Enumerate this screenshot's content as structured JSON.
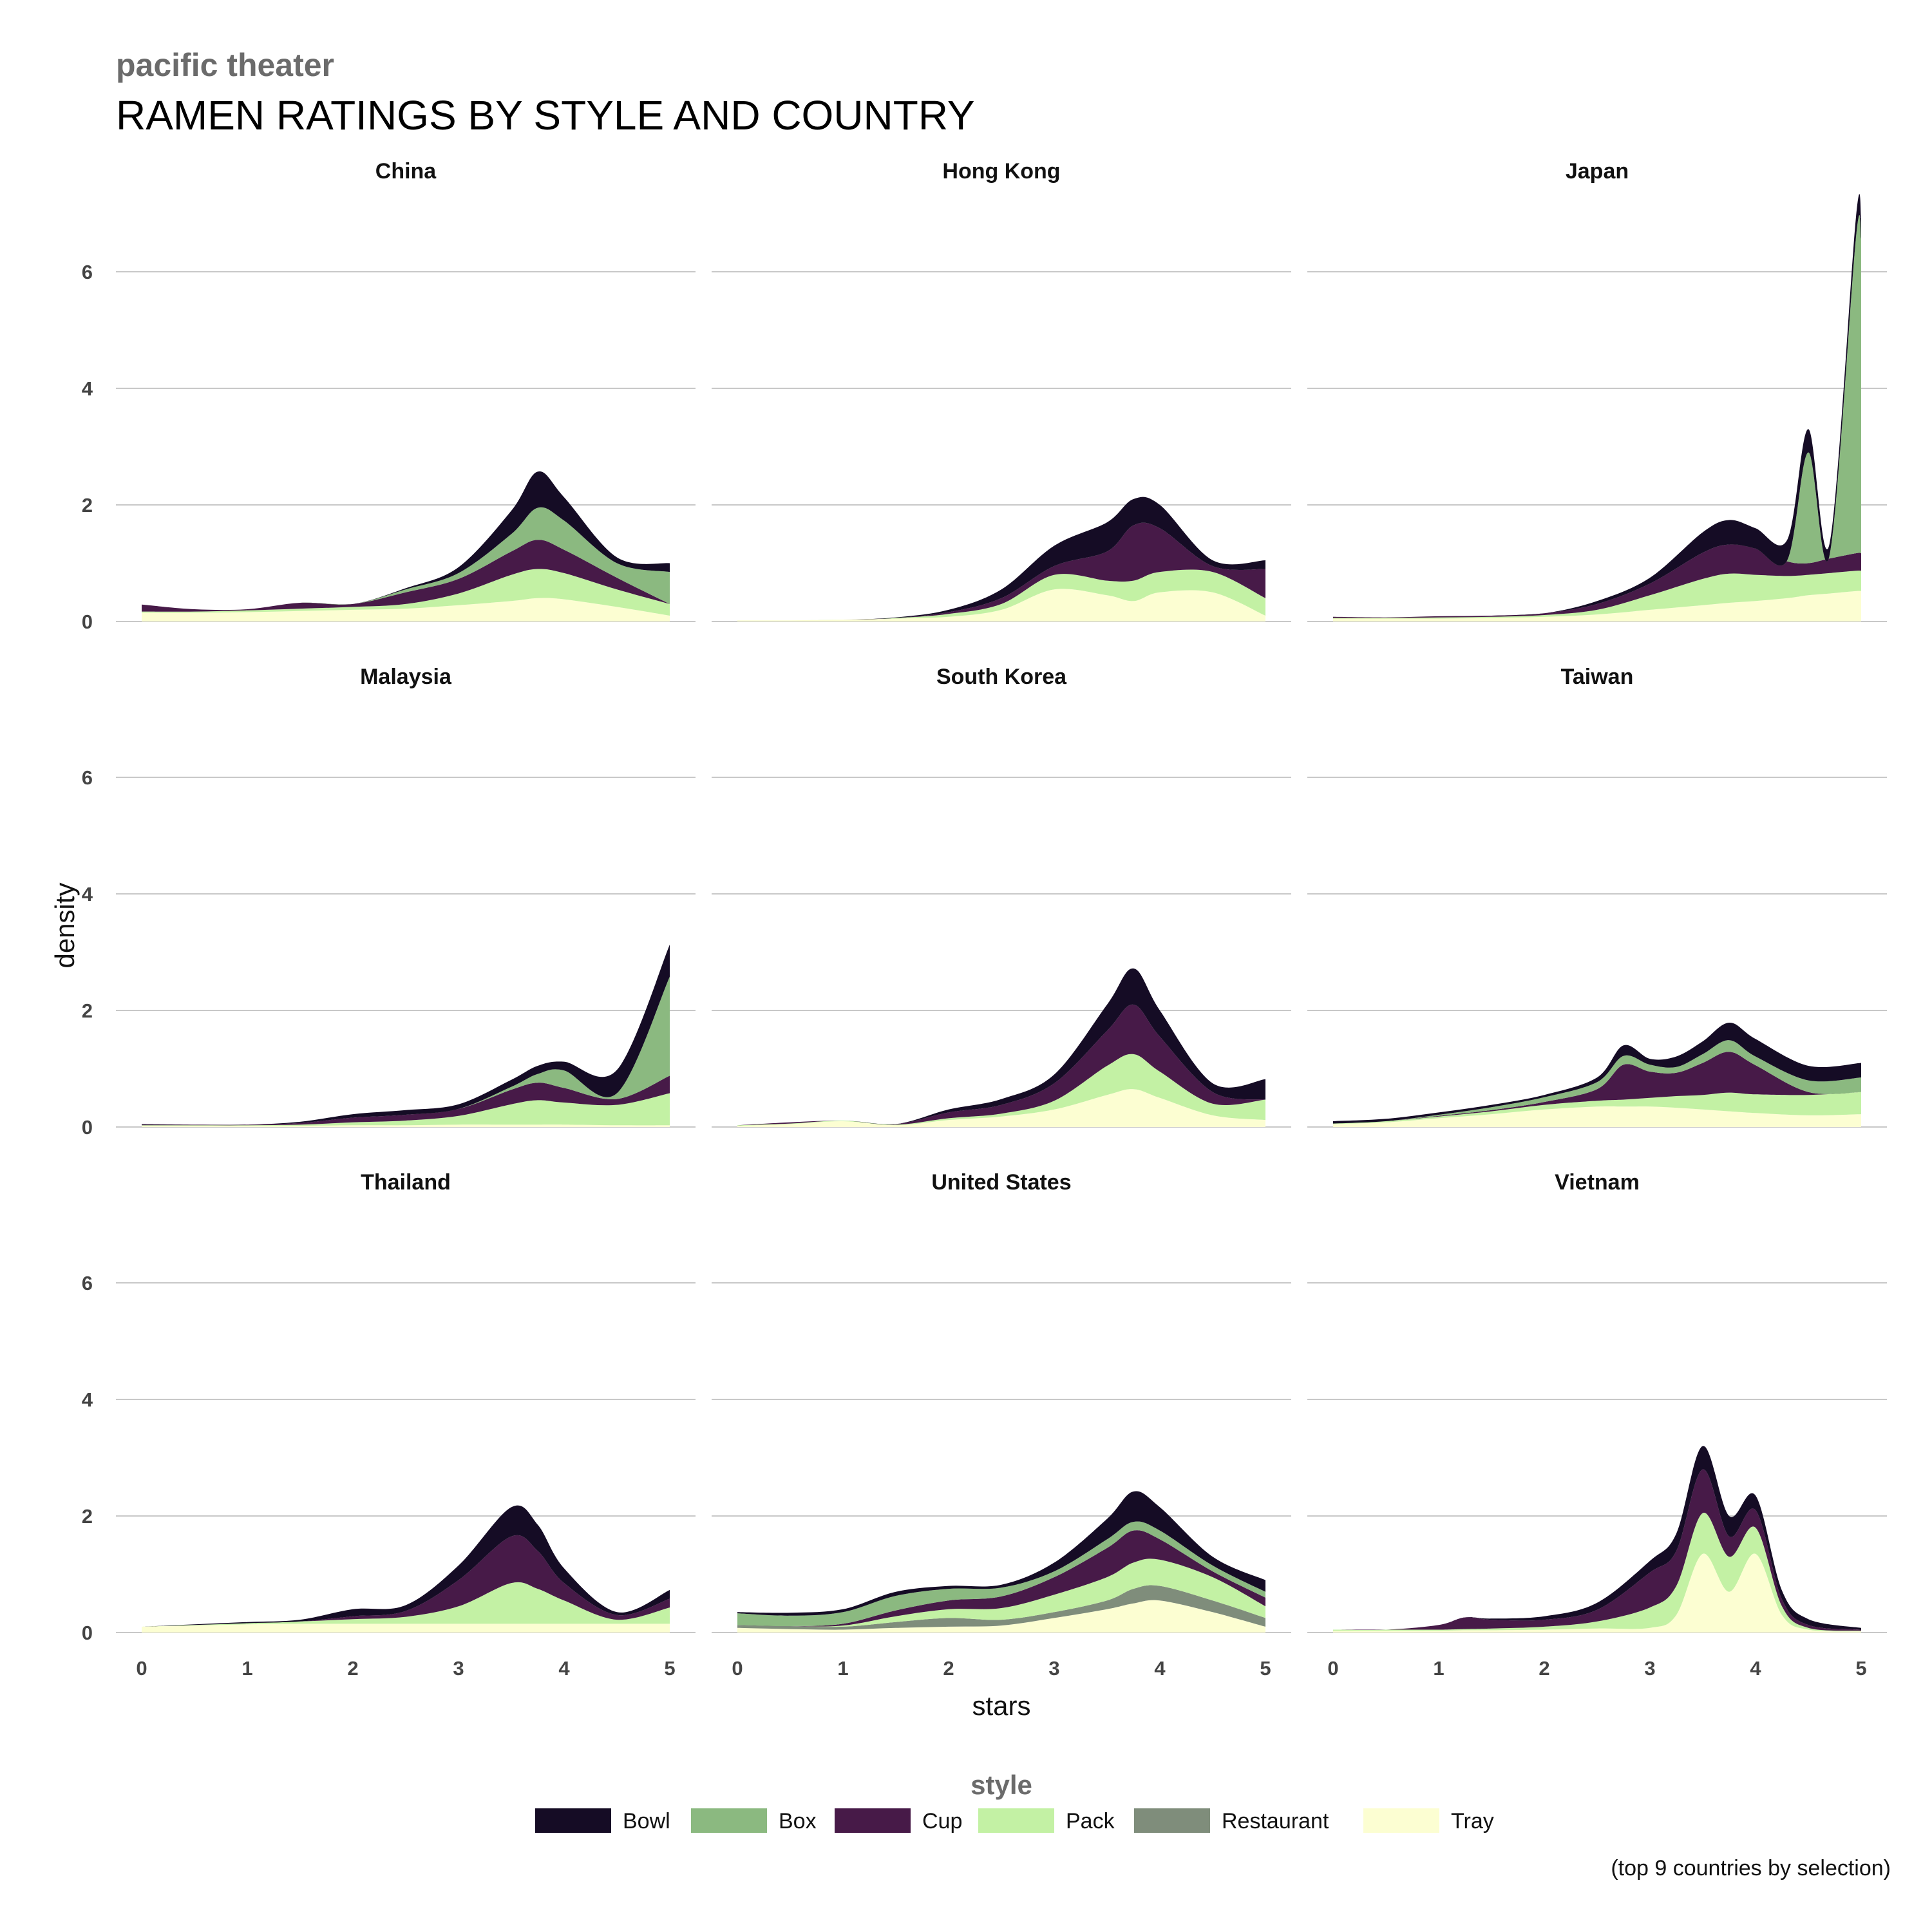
{
  "header": {
    "kicker": "pacific theater",
    "title": "RAMEN RATINGS BY STYLE AND COUNTRY"
  },
  "caption": "(top 9 countries by selection)",
  "chart_data": {
    "type": "area",
    "stacked": true,
    "x_label": "stars",
    "y_label": "density",
    "xlim": [
      0,
      5
    ],
    "ylim": [
      0,
      7
    ],
    "x_ticks": [
      0,
      1,
      2,
      3,
      4,
      5
    ],
    "y_ticks": [
      0,
      2,
      4,
      6
    ],
    "grid": "horizontal",
    "legend_title": "style",
    "legend_position": "bottom",
    "series": [
      {
        "name": "Bowl",
        "color": "#150c25"
      },
      {
        "name": "Box",
        "color": "#8bb980"
      },
      {
        "name": "Cup",
        "color": "#471a48"
      },
      {
        "name": "Pack",
        "color": "#c3f1a4"
      },
      {
        "name": "Restaurant",
        "color": "#7f8d7b"
      },
      {
        "name": "Tray",
        "color": "#fcfed2"
      }
    ],
    "panels": [
      {
        "country": "China",
        "x": [
          0,
          0.5,
          1,
          1.5,
          2,
          2.5,
          3,
          3.5,
          3.75,
          4,
          4.5,
          5
        ],
        "Tray": [
          0.15,
          0.15,
          0.16,
          0.18,
          0.2,
          0.22,
          0.28,
          0.35,
          0.4,
          0.38,
          0.25,
          0.1
        ],
        "Pack": [
          0.02,
          0.02,
          0.03,
          0.04,
          0.05,
          0.08,
          0.2,
          0.45,
          0.5,
          0.45,
          0.3,
          0.2
        ],
        "Cup": [
          0.12,
          0.04,
          0.02,
          0.1,
          0.05,
          0.2,
          0.25,
          0.4,
          0.5,
          0.4,
          0.2,
          0.0
        ],
        "Box": [
          0,
          0,
          0,
          0,
          0,
          0.05,
          0.1,
          0.3,
          0.55,
          0.5,
          0.25,
          0.55
        ],
        "Restaurant": [
          0,
          0,
          0,
          0,
          0,
          0,
          0,
          0,
          0,
          0,
          0,
          0
        ],
        "Bowl": [
          0.0,
          0.0,
          0.0,
          0.0,
          0.0,
          0.02,
          0.1,
          0.4,
          0.62,
          0.4,
          0.1,
          0.15
        ]
      },
      {
        "country": "Hong Kong",
        "x": [
          0,
          0.5,
          1,
          1.5,
          2,
          2.5,
          3,
          3.5,
          3.75,
          4,
          4.5,
          5
        ],
        "Tray": [
          0.02,
          0.02,
          0.03,
          0.05,
          0.08,
          0.2,
          0.55,
          0.45,
          0.35,
          0.5,
          0.5,
          0.1
        ],
        "Pack": [
          0,
          0,
          0,
          0.01,
          0.05,
          0.1,
          0.25,
          0.25,
          0.35,
          0.35,
          0.35,
          0.3
        ],
        "Cup": [
          0,
          0,
          0,
          0,
          0.03,
          0.1,
          0.15,
          0.5,
          0.95,
          0.75,
          0.1,
          0.5
        ],
        "Box": [
          0,
          0,
          0,
          0,
          0,
          0,
          0,
          0,
          0,
          0,
          0,
          0
        ],
        "Restaurant": [
          0,
          0,
          0,
          0,
          0,
          0,
          0,
          0,
          0,
          0,
          0,
          0
        ],
        "Bowl": [
          0,
          0,
          0,
          0.01,
          0.04,
          0.15,
          0.35,
          0.5,
          0.45,
          0.4,
          0.1,
          0.15
        ]
      },
      {
        "country": "Japan",
        "x": [
          0,
          0.5,
          1,
          1.5,
          2,
          2.5,
          3,
          3.5,
          3.75,
          4,
          4.3,
          4.5,
          4.7,
          4.95,
          5
        ],
        "Tray": [
          0.05,
          0.05,
          0.05,
          0.06,
          0.08,
          0.12,
          0.2,
          0.28,
          0.32,
          0.35,
          0.4,
          0.45,
          0.48,
          0.52,
          0.52
        ],
        "Pack": [
          0.01,
          0.01,
          0.02,
          0.02,
          0.03,
          0.08,
          0.25,
          0.45,
          0.5,
          0.45,
          0.38,
          0.35,
          0.35,
          0.35,
          0.35
        ],
        "Cup": [
          0.02,
          0.01,
          0.02,
          0.02,
          0.03,
          0.1,
          0.2,
          0.45,
          0.5,
          0.45,
          0.25,
          0.2,
          0.25,
          0.3,
          0.3
        ],
        "Box": [
          0,
          0,
          0,
          0,
          0,
          0,
          0,
          0,
          0,
          0,
          0.02,
          1.9,
          0.05,
          5.4,
          5.4
        ],
        "Restaurant": [
          0,
          0,
          0,
          0,
          0,
          0,
          0,
          0,
          0,
          0,
          0,
          0,
          0,
          0,
          0
        ],
        "Bowl": [
          0.0,
          0.0,
          0.0,
          0.0,
          0.0,
          0.05,
          0.1,
          0.35,
          0.42,
          0.35,
          0.35,
          0.4,
          0.2,
          0.35,
          0.35
        ]
      },
      {
        "country": "Malaysia",
        "x": [
          0,
          0.5,
          1,
          1.5,
          2,
          2.5,
          3,
          3.5,
          3.75,
          4,
          4.5,
          5
        ],
        "Tray": [
          0.02,
          0.02,
          0.02,
          0.02,
          0.03,
          0.03,
          0.04,
          0.04,
          0.04,
          0.04,
          0.03,
          0.03
        ],
        "Pack": [
          0.01,
          0.01,
          0.01,
          0.02,
          0.05,
          0.08,
          0.15,
          0.35,
          0.42,
          0.38,
          0.35,
          0.55
        ],
        "Cup": [
          0.01,
          0.01,
          0.01,
          0.03,
          0.08,
          0.1,
          0.12,
          0.25,
          0.3,
          0.25,
          0.1,
          0.3
        ],
        "Box": [
          0,
          0,
          0,
          0,
          0,
          0,
          0,
          0.05,
          0.15,
          0.3,
          0.1,
          1.7
        ],
        "Restaurant": [
          0,
          0,
          0,
          0,
          0,
          0,
          0,
          0,
          0,
          0,
          0,
          0
        ],
        "Bowl": [
          0.01,
          0.0,
          0.0,
          0.02,
          0.06,
          0.08,
          0.08,
          0.12,
          0.14,
          0.15,
          0.4,
          0.55
        ]
      },
      {
        "country": "South Korea",
        "x": [
          0,
          0.5,
          1,
          1.5,
          2,
          2.5,
          3,
          3.5,
          3.75,
          4,
          4.5,
          5
        ],
        "Tray": [
          0.02,
          0.05,
          0.1,
          0.03,
          0.12,
          0.18,
          0.3,
          0.55,
          0.65,
          0.5,
          0.2,
          0.12
        ],
        "Pack": [
          0.01,
          0.01,
          0.01,
          0.01,
          0.03,
          0.05,
          0.15,
          0.5,
          0.6,
          0.45,
          0.2,
          0.35
        ],
        "Cup": [
          0.0,
          0.02,
          0.0,
          0.01,
          0.1,
          0.15,
          0.3,
          0.6,
          0.85,
          0.6,
          0.2,
          0.0
        ],
        "Box": [
          0,
          0,
          0,
          0,
          0,
          0,
          0,
          0,
          0,
          0,
          0,
          0
        ],
        "Restaurant": [
          0,
          0,
          0,
          0,
          0,
          0,
          0,
          0,
          0,
          0,
          0,
          0
        ],
        "Bowl": [
          0.0,
          0.0,
          0.0,
          0.0,
          0.05,
          0.1,
          0.15,
          0.45,
          0.62,
          0.45,
          0.15,
          0.35
        ]
      },
      {
        "country": "Taiwan",
        "x": [
          0,
          0.5,
          1,
          1.5,
          2,
          2.5,
          2.75,
          3,
          3.25,
          3.5,
          3.75,
          4,
          4.5,
          5
        ],
        "Tray": [
          0.05,
          0.08,
          0.15,
          0.22,
          0.3,
          0.35,
          0.35,
          0.35,
          0.33,
          0.3,
          0.27,
          0.24,
          0.2,
          0.22
        ],
        "Pack": [
          0.01,
          0.02,
          0.03,
          0.05,
          0.08,
          0.1,
          0.12,
          0.15,
          0.2,
          0.25,
          0.32,
          0.32,
          0.35,
          0.38
        ],
        "Cup": [
          0.0,
          0.0,
          0.01,
          0.02,
          0.05,
          0.2,
          0.6,
          0.45,
          0.4,
          0.55,
          0.7,
          0.5,
          0.05,
          0.0
        ],
        "Box": [
          0.0,
          0.0,
          0.02,
          0.05,
          0.08,
          0.12,
          0.15,
          0.12,
          0.1,
          0.15,
          0.2,
          0.15,
          0.2,
          0.25
        ],
        "Restaurant": [
          0,
          0,
          0,
          0,
          0,
          0,
          0,
          0,
          0,
          0,
          0,
          0,
          0,
          0
        ],
        "Bowl": [
          0.04,
          0.04,
          0.04,
          0.04,
          0.04,
          0.08,
          0.18,
          0.1,
          0.18,
          0.22,
          0.3,
          0.3,
          0.25,
          0.25
        ]
      },
      {
        "country": "Thailand",
        "x": [
          0,
          0.5,
          1,
          1.5,
          2,
          2.5,
          3,
          3.5,
          3.75,
          4,
          4.5,
          5
        ],
        "Tray": [
          0.1,
          0.12,
          0.14,
          0.15,
          0.15,
          0.15,
          0.15,
          0.15,
          0.15,
          0.15,
          0.15,
          0.15
        ],
        "Pack": [
          0.0,
          0.01,
          0.02,
          0.04,
          0.08,
          0.12,
          0.3,
          0.7,
          0.6,
          0.4,
          0.07,
          0.28
        ],
        "Cup": [
          0.0,
          0.0,
          0.0,
          0.0,
          0.05,
          0.1,
          0.45,
          0.8,
          0.65,
          0.3,
          0.08,
          0.15
        ],
        "Box": [
          0,
          0,
          0,
          0,
          0,
          0,
          0,
          0,
          0,
          0,
          0,
          0
        ],
        "Restaurant": [
          0,
          0,
          0,
          0,
          0,
          0,
          0,
          0,
          0,
          0,
          0,
          0
        ],
        "Bowl": [
          0.0,
          0.01,
          0.02,
          0.03,
          0.12,
          0.1,
          0.25,
          0.5,
          0.45,
          0.25,
          0.05,
          0.15
        ]
      },
      {
        "country": "United States",
        "x": [
          0,
          0.5,
          1,
          1.5,
          2,
          2.5,
          3,
          3.5,
          3.75,
          4,
          4.5,
          5
        ],
        "Tray": [
          0.08,
          0.06,
          0.05,
          0.08,
          0.1,
          0.12,
          0.25,
          0.4,
          0.5,
          0.55,
          0.35,
          0.1
        ],
        "Restaurant": [
          0.05,
          0.05,
          0.05,
          0.1,
          0.15,
          0.1,
          0.1,
          0.15,
          0.25,
          0.25,
          0.2,
          0.15
        ],
        "Pack": [
          0.0,
          0.0,
          0.02,
          0.1,
          0.15,
          0.2,
          0.3,
          0.4,
          0.45,
          0.45,
          0.4,
          0.2
        ],
        "Cup": [
          0.0,
          0.0,
          0.03,
          0.1,
          0.15,
          0.2,
          0.3,
          0.5,
          0.55,
          0.35,
          0.1,
          0.15
        ],
        "Box": [
          0.2,
          0.18,
          0.2,
          0.25,
          0.2,
          0.15,
          0.1,
          0.15,
          0.15,
          0.15,
          0.1,
          0.1
        ],
        "Bowl": [
          0.02,
          0.05,
          0.05,
          0.07,
          0.05,
          0.05,
          0.15,
          0.35,
          0.52,
          0.4,
          0.15,
          0.2
        ]
      },
      {
        "country": "Vietnam",
        "x": [
          0,
          0.5,
          1,
          1.25,
          1.5,
          2,
          2.5,
          3,
          3.25,
          3.5,
          3.75,
          4,
          4.25,
          4.5,
          5
        ],
        "Tray": [
          0.03,
          0.03,
          0.03,
          0.04,
          0.04,
          0.05,
          0.07,
          0.08,
          0.3,
          1.35,
          0.7,
          1.35,
          0.3,
          0.05,
          0.02
        ],
        "Pack": [
          0.02,
          0.02,
          0.02,
          0.02,
          0.03,
          0.05,
          0.12,
          0.35,
          0.5,
          0.7,
          0.6,
          0.45,
          0.15,
          0.03,
          0.01
        ],
        "Cup": [
          0.0,
          0.0,
          0.08,
          0.2,
          0.15,
          0.12,
          0.2,
          0.6,
          0.6,
          0.75,
          0.35,
          0.3,
          0.12,
          0.05,
          0.02
        ],
        "Box": [
          0,
          0,
          0,
          0,
          0,
          0,
          0,
          0,
          0,
          0,
          0,
          0,
          0,
          0,
          0
        ],
        "Restaurant": [
          0,
          0,
          0,
          0,
          0,
          0,
          0,
          0,
          0,
          0,
          0,
          0,
          0,
          0,
          0
        ],
        "Bowl": [
          0.0,
          0.0,
          0.0,
          0.0,
          0.02,
          0.06,
          0.12,
          0.2,
          0.3,
          0.4,
          0.35,
          0.25,
          0.15,
          0.1,
          0.03
        ]
      }
    ]
  }
}
